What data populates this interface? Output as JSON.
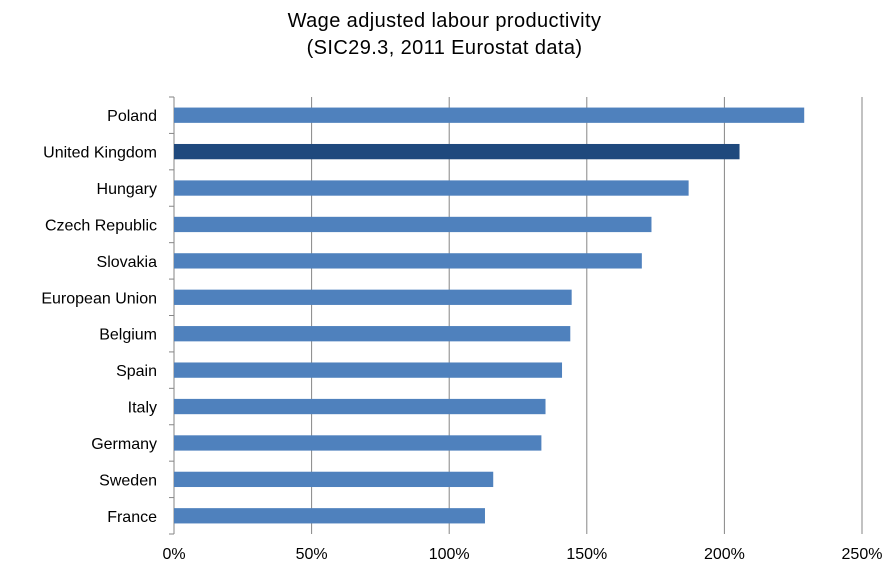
{
  "chart_data": {
    "type": "bar",
    "orientation": "horizontal",
    "title": "Wage adjusted labour productivity",
    "subtitle": "(SIC29.3, 2011 Eurostat data)",
    "categories": [
      "Poland",
      "United Kingdom",
      "Hungary",
      "Czech Republic",
      "Slovakia",
      "European Union",
      "Belgium",
      "Spain",
      "Italy",
      "Germany",
      "Sweden",
      "France"
    ],
    "values": [
      229,
      205.5,
      187,
      173.5,
      170,
      144.5,
      144,
      141,
      135,
      133.5,
      116,
      113
    ],
    "highlight": "United Kingdom",
    "xlim": [
      0,
      250
    ],
    "xticks": [
      "0%",
      "50%",
      "100%",
      "150%",
      "200%",
      "250%"
    ],
    "xtick_values": [
      0,
      50,
      100,
      150,
      200,
      250
    ],
    "grid": true,
    "legend": "none",
    "colors": {
      "bar": "#4f81bd",
      "highlight": "#1f497d",
      "grid": "#868686",
      "axis": "#868686"
    }
  }
}
